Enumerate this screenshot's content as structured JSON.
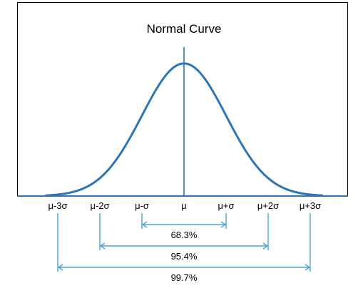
{
  "chart_data": {
    "type": "line",
    "title": "Normal Curve",
    "xlabel": "",
    "ylabel": "",
    "xlim": [
      -3.3,
      3.3
    ],
    "x_ticks": [
      {
        "x": -3,
        "label": "μ-3σ"
      },
      {
        "x": -2,
        "label": "μ-2σ"
      },
      {
        "x": -1,
        "label": "μ-σ"
      },
      {
        "x": 0,
        "label": "μ"
      },
      {
        "x": 1,
        "label": "μ+σ"
      },
      {
        "x": 2,
        "label": "μ+2σ"
      },
      {
        "x": 3,
        "label": "μ+3σ"
      }
    ],
    "intervals": [
      {
        "from": -1,
        "to": 1,
        "label": "68.3%"
      },
      {
        "from": -2,
        "to": 2,
        "label": "95.4%"
      },
      {
        "from": -3,
        "to": 3,
        "label": "99.7%"
      }
    ],
    "mean_line": true,
    "grid": false,
    "legend": "none",
    "colors": {
      "curve": "#2e75b6",
      "intervals": "#4aa3d8",
      "frame": "#000000"
    }
  }
}
